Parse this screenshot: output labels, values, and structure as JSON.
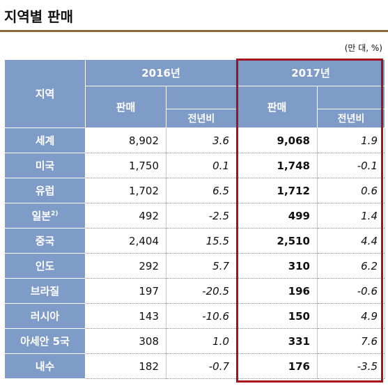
{
  "title": "지역별 판매",
  "unit_note": "(만 대, %)",
  "header": {
    "region": "지역",
    "year1": "2016년",
    "year2": "2017년",
    "sales": "판매",
    "yoy": "전년비"
  },
  "rows": [
    {
      "region": "세계",
      "sup": "",
      "s2016": "8,902",
      "y2016": "3.6",
      "s2017": "9,068",
      "y2017": "1.9"
    },
    {
      "region": "미국",
      "sup": "",
      "s2016": "1,750",
      "y2016": "0.1",
      "s2017": "1,748",
      "y2017": "-0.1"
    },
    {
      "region": "유럽",
      "sup": "",
      "s2016": "1,702",
      "y2016": "6.5",
      "s2017": "1,712",
      "y2017": "0.6"
    },
    {
      "region": "일본",
      "sup": "2)",
      "s2016": "492",
      "y2016": "-2.5",
      "s2017": "499",
      "y2017": "1.4"
    },
    {
      "region": "중국",
      "sup": "",
      "s2016": "2,404",
      "y2016": "15.5",
      "s2017": "2,510",
      "y2017": "4.4"
    },
    {
      "region": "인도",
      "sup": "",
      "s2016": "292",
      "y2016": "5.7",
      "s2017": "310",
      "y2017": "6.2"
    },
    {
      "region": "브라질",
      "sup": "",
      "s2016": "197",
      "y2016": "-20.5",
      "s2017": "196",
      "y2017": "-0.6"
    },
    {
      "region": "러시아",
      "sup": "",
      "s2016": "143",
      "y2016": "-10.6",
      "s2017": "150",
      "y2017": "4.9"
    },
    {
      "region": "아세안 5국",
      "sup": "",
      "s2016": "308",
      "y2016": "1.0",
      "s2017": "331",
      "y2017": "7.6"
    },
    {
      "region": "내수",
      "sup": "",
      "s2016": "182",
      "y2016": "-0.7",
      "s2017": "176",
      "y2017": "-3.5"
    }
  ],
  "colors": {
    "header_bg": "#7f9bc7",
    "highlight_frame": "#a5121e",
    "title_rule": "#8a6a3c"
  }
}
